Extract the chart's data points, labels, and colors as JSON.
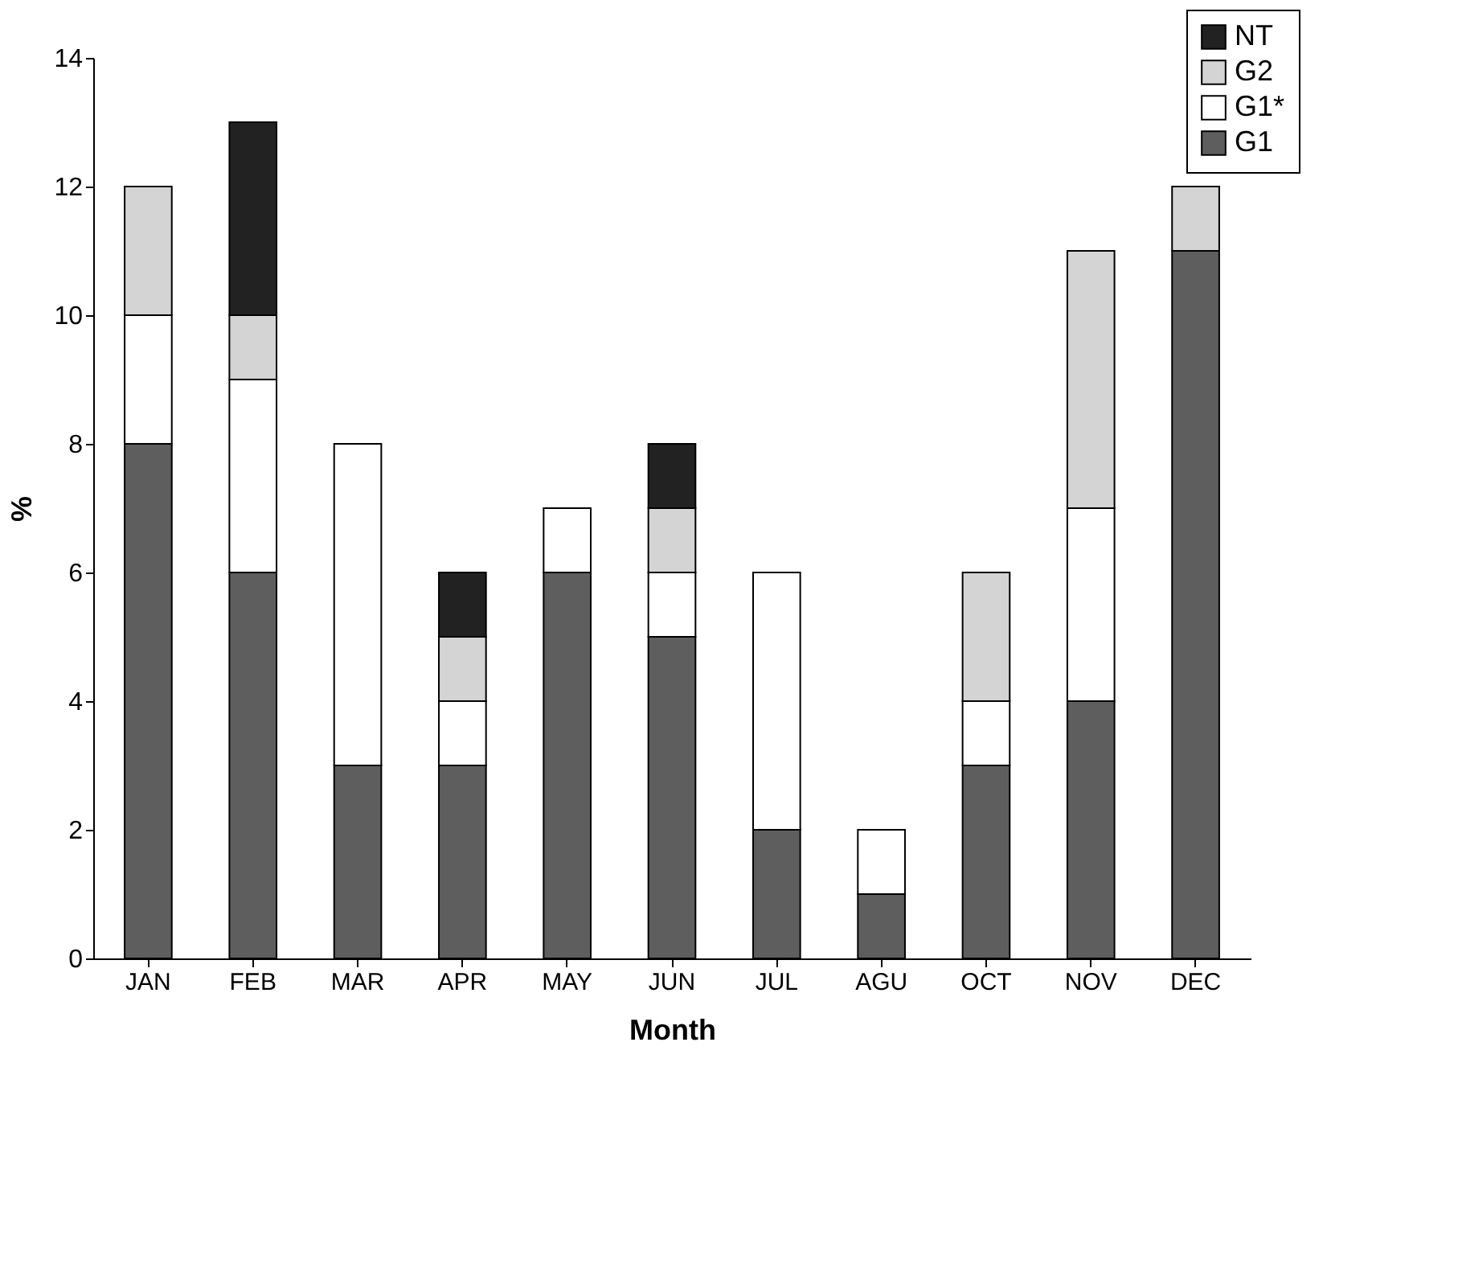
{
  "chart_data": {
    "type": "bar",
    "stacked": true,
    "xlabel": "Month",
    "ylabel": "%",
    "categories": [
      "JAN",
      "FEB",
      "MAR",
      "APR",
      "MAY",
      "JUN",
      "JUL",
      "AGU",
      "OCT",
      "NOV",
      "DEC"
    ],
    "series": [
      {
        "name": "G1",
        "color": "#5e5e5e",
        "values": [
          8,
          6,
          3,
          3,
          6,
          5,
          2,
          1,
          3,
          4,
          11
        ]
      },
      {
        "name": "G1*",
        "color": "#ffffff",
        "values": [
          2,
          3,
          5,
          1,
          1,
          1,
          4,
          1,
          1,
          3,
          null
        ]
      },
      {
        "name": "G2",
        "color": "#d4d4d4",
        "values": [
          2,
          1,
          null,
          1,
          null,
          1,
          null,
          null,
          2,
          4,
          1
        ]
      },
      {
        "name": "NT",
        "color": "#222222",
        "values": [
          null,
          3,
          null,
          1,
          null,
          1,
          null,
          null,
          null,
          null,
          null
        ]
      }
    ],
    "ylim": [
      0,
      14
    ],
    "yticks": [
      0,
      2,
      4,
      6,
      8,
      10,
      12,
      14
    ],
    "grid": false,
    "legend": "top right"
  }
}
